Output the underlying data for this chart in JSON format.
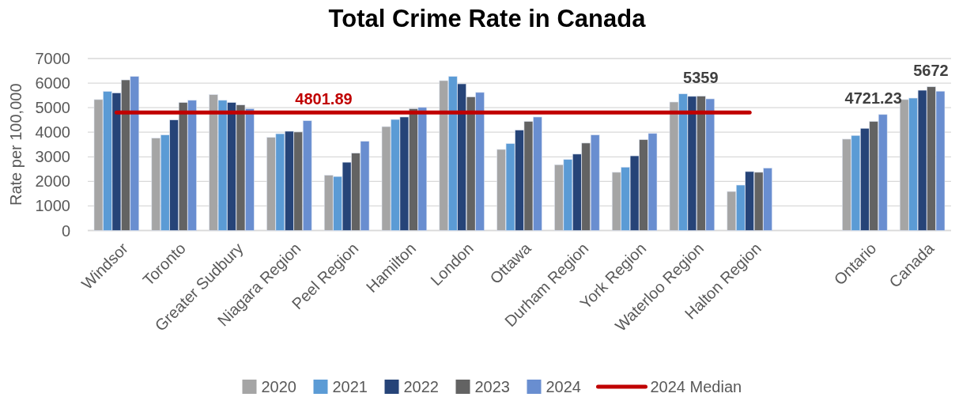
{
  "chart_data": {
    "type": "bar",
    "title": "Total Crime Rate in Canada",
    "ylabel": "Rate per 100,000",
    "categories": [
      "Windsor",
      "Toronto",
      "Greater Sudbury",
      "Niagara Region",
      "Peel Region",
      "Hamilton",
      "London",
      "Ottawa",
      "Durham Region",
      "York Region",
      "Waterloo Region",
      "Halton Region",
      null,
      "Ontario",
      "Canada"
    ],
    "series": [
      {
        "name": "2020",
        "color": "#a5a5a5",
        "values": [
          5330,
          3760,
          5530,
          3790,
          2250,
          4230,
          6100,
          3300,
          2680,
          2370,
          5230,
          1590,
          null,
          3720,
          5330
        ]
      },
      {
        "name": "2021",
        "color": "#5b9bd5",
        "values": [
          5660,
          3890,
          5300,
          3940,
          2200,
          4520,
          6270,
          3540,
          2890,
          2580,
          5560,
          1850,
          null,
          3870,
          5390
        ]
      },
      {
        "name": "2022",
        "color": "#264478",
        "values": [
          5600,
          4500,
          5210,
          4040,
          2780,
          4620,
          5970,
          4090,
          3110,
          3040,
          5460,
          2400,
          null,
          4160,
          5710
        ]
      },
      {
        "name": "2023",
        "color": "#636363",
        "values": [
          6130,
          5210,
          5110,
          4010,
          3150,
          4960,
          5440,
          4440,
          3560,
          3700,
          5470,
          2370,
          null,
          4440,
          5850
        ]
      },
      {
        "name": "2024",
        "color": "#698ed0",
        "values": [
          6270,
          5300,
          4960,
          4470,
          3630,
          5010,
          5620,
          4620,
          3890,
          3950,
          5359,
          2540,
          null,
          4721.23,
          5672
        ],
        "value_labels": [
          null,
          null,
          null,
          null,
          null,
          null,
          null,
          null,
          null,
          null,
          "5359",
          null,
          null,
          "4721.23",
          "5672"
        ]
      },
      {
        "name": "2024 Median",
        "type": "line",
        "color": "#c00000",
        "values": [
          4801.89,
          4801.89,
          4801.89,
          4801.89,
          4801.89,
          4801.89,
          4801.89,
          4801.89,
          4801.89,
          4801.89,
          4801.89,
          4801.89,
          null,
          null,
          null
        ]
      }
    ],
    "annotations": [
      {
        "text": "4801.89",
        "x": "Niagara Region",
        "y": 4801.89
      }
    ],
    "ylim": [
      0,
      7000
    ],
    "yticks": [
      0,
      1000,
      2000,
      3000,
      4000,
      5000,
      6000,
      7000
    ],
    "grid": "y",
    "legend": "bottom"
  }
}
